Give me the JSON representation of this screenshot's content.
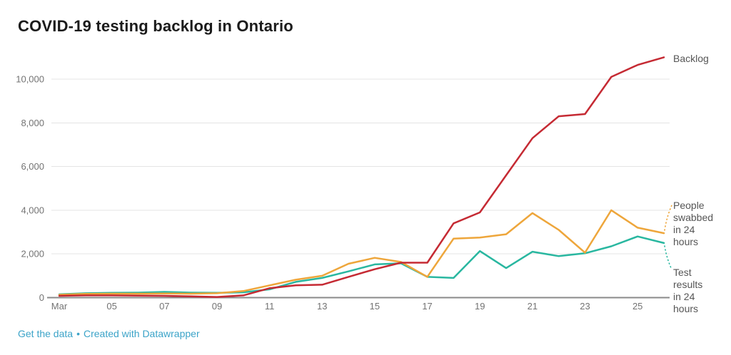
{
  "title": "COVID-19 testing backlog in Ontario",
  "footer": {
    "get_data_label": "Get the data",
    "separator": "•",
    "credit_label": "Created with Datawrapper",
    "link_color": "#3ba3c8"
  },
  "chart_data": {
    "type": "line",
    "title": "COVID-19 testing backlog in Ontario",
    "xlabel": "",
    "ylabel": "",
    "x_unit": "day of March",
    "x": [
      3,
      4,
      5,
      6,
      7,
      8,
      9,
      10,
      11,
      12,
      13,
      14,
      15,
      16,
      17,
      18,
      19,
      20,
      21,
      22,
      23,
      24,
      25,
      26
    ],
    "x_ticks": [
      {
        "day": 3,
        "label": "Mar"
      },
      {
        "day": 5,
        "label": "05"
      },
      {
        "day": 7,
        "label": "07"
      },
      {
        "day": 9,
        "label": "09"
      },
      {
        "day": 11,
        "label": "11"
      },
      {
        "day": 13,
        "label": "13"
      },
      {
        "day": 15,
        "label": "15"
      },
      {
        "day": 17,
        "label": "17"
      },
      {
        "day": 19,
        "label": "19"
      },
      {
        "day": 21,
        "label": "21"
      },
      {
        "day": 23,
        "label": "23"
      },
      {
        "day": 25,
        "label": "25"
      }
    ],
    "yticks": [
      0,
      2000,
      4000,
      6000,
      8000,
      10000
    ],
    "ylim": [
      0,
      11200
    ],
    "grid": "horizontal",
    "legend_position": "right-edge-labels",
    "series": [
      {
        "id": "results",
        "name": "Test results in 24 hours",
        "color": "#29b7a0",
        "label_lines": [
          "Test",
          "results",
          "in 24",
          "hours"
        ],
        "values": [
          150,
          200,
          220,
          230,
          260,
          230,
          220,
          240,
          380,
          720,
          900,
          1200,
          1520,
          1570,
          950,
          900,
          2130,
          1350,
          2100,
          1900,
          2030,
          2350,
          2800,
          2500
        ]
      },
      {
        "id": "swabbed",
        "name": "People swabbed in 24 hours",
        "color": "#eea63b",
        "label_lines": [
          "People",
          "swabbed",
          "in 24",
          "hours"
        ],
        "values": [
          130,
          170,
          180,
          180,
          190,
          180,
          200,
          300,
          560,
          820,
          1000,
          1550,
          1820,
          1630,
          950,
          2700,
          2750,
          2900,
          3870,
          3100,
          2060,
          4000,
          3200,
          2950
        ]
      },
      {
        "id": "backlog",
        "name": "Backlog",
        "color": "#c52a33",
        "label_lines": [
          "Backlog"
        ],
        "values": [
          80,
          100,
          100,
          90,
          80,
          60,
          30,
          100,
          430,
          560,
          590,
          950,
          1300,
          1600,
          1600,
          3400,
          3900,
          5600,
          7300,
          8300,
          8400,
          10100,
          10650,
          11000
        ]
      }
    ],
    "style": {
      "gridline_color": "#e4e4e4",
      "axis_color": "#8a8a8a",
      "tick_label_color": "#737373",
      "series_label_color": "#555555"
    }
  }
}
